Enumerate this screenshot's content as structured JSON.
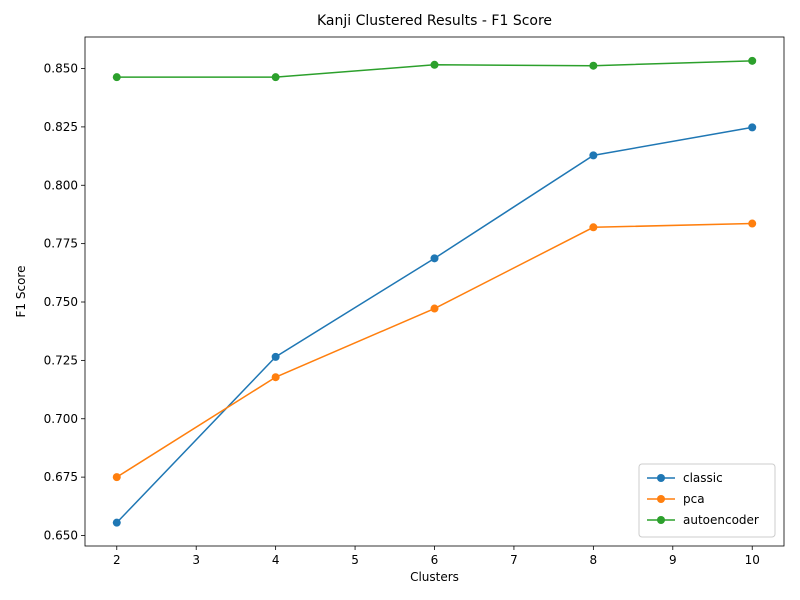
{
  "chart_data": {
    "type": "line",
    "title": "Kanji Clustered Results - F1 Score",
    "xlabel": "Clusters",
    "ylabel": "F1 Score",
    "x": [
      2,
      4,
      6,
      8,
      10
    ],
    "xlim": [
      1.6,
      10.4
    ],
    "ylim": [
      0.6455,
      0.8635
    ],
    "xticks": [
      2,
      3,
      4,
      5,
      6,
      7,
      8,
      9,
      10
    ],
    "xtick_labels": [
      "2",
      "3",
      "4",
      "5",
      "6",
      "7",
      "8",
      "9",
      "10"
    ],
    "yticks": [
      0.65,
      0.675,
      0.7,
      0.725,
      0.75,
      0.775,
      0.8,
      0.825,
      0.85
    ],
    "ytick_labels": [
      "0.650",
      "0.675",
      "0.700",
      "0.725",
      "0.750",
      "0.775",
      "0.800",
      "0.825",
      "0.850"
    ],
    "grid": false,
    "legend_position": "bottom-right",
    "series": [
      {
        "name": "classic",
        "color": "#1f77b4",
        "values": [
          0.6555,
          0.7265,
          0.7687,
          0.8128,
          0.8248
        ]
      },
      {
        "name": "pca",
        "color": "#ff7f0e",
        "values": [
          0.675,
          0.7178,
          0.7472,
          0.782,
          0.7836
        ]
      },
      {
        "name": "autoencoder",
        "color": "#2ca02c",
        "values": [
          0.8463,
          0.8463,
          0.8516,
          0.8512,
          0.8533
        ]
      }
    ]
  }
}
